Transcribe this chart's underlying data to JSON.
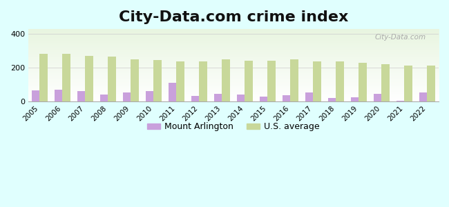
{
  "title": "City-Data.com crime index",
  "years": [
    2005,
    2006,
    2007,
    2008,
    2009,
    2010,
    2011,
    2012,
    2013,
    2014,
    2015,
    2016,
    2017,
    2018,
    2019,
    2020,
    2021,
    2022
  ],
  "mount_arlington": [
    65,
    70,
    63,
    40,
    52,
    62,
    112,
    35,
    47,
    42,
    30,
    38,
    55,
    22,
    25,
    47,
    5,
    52
  ],
  "us_average": [
    283,
    283,
    272,
    265,
    252,
    247,
    240,
    237,
    252,
    243,
    243,
    250,
    240,
    237,
    228,
    222,
    213,
    215
  ],
  "bar_width": 0.35,
  "ylim": [
    0,
    430
  ],
  "yticks": [
    0,
    200,
    400
  ],
  "background_color": "#e0fffe",
  "plot_bg_top": "#f0f8f0",
  "plot_bg_bottom": "#ffffff",
  "mount_arlington_color": "#c9a0dc",
  "us_average_color": "#c8d89a",
  "mount_arlington_label": "Mount Arlington",
  "us_average_label": "U.S. average",
  "title_fontsize": 16,
  "watermark": "City-Data.com"
}
